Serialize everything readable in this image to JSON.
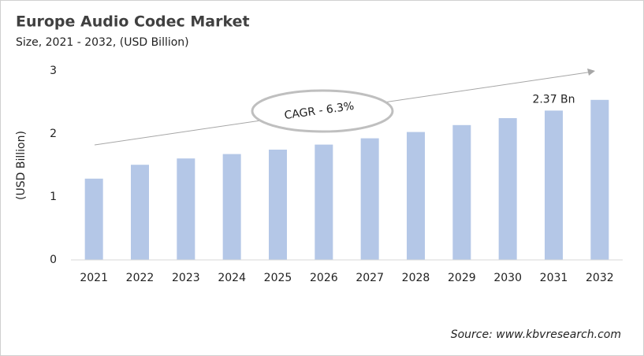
{
  "chart_data": {
    "type": "bar",
    "title": "Europe Audio Codec Market",
    "subtitle": "Size, 2021 - 2032, (USD Billion)",
    "y_label": "(USD Billion)",
    "categories": [
      "2021",
      "2022",
      "2023",
      "2024",
      "2025",
      "2026",
      "2027",
      "2028",
      "2029",
      "2030",
      "2031",
      "2032"
    ],
    "values": [
      1.29,
      1.51,
      1.61,
      1.68,
      1.75,
      1.83,
      1.93,
      2.03,
      2.14,
      2.25,
      2.37,
      2.54
    ],
    "value_labels": [
      null,
      null,
      null,
      null,
      null,
      null,
      null,
      null,
      null,
      null,
      "2.37 Bn",
      null
    ],
    "color": "#b4c7e7",
    "ylim": [
      0,
      3
    ],
    "yticks": [
      0,
      1,
      2,
      3
    ],
    "grid": false,
    "annotation": "CAGR - 6.3%",
    "source": "Source: www.kbvresearch.com"
  }
}
